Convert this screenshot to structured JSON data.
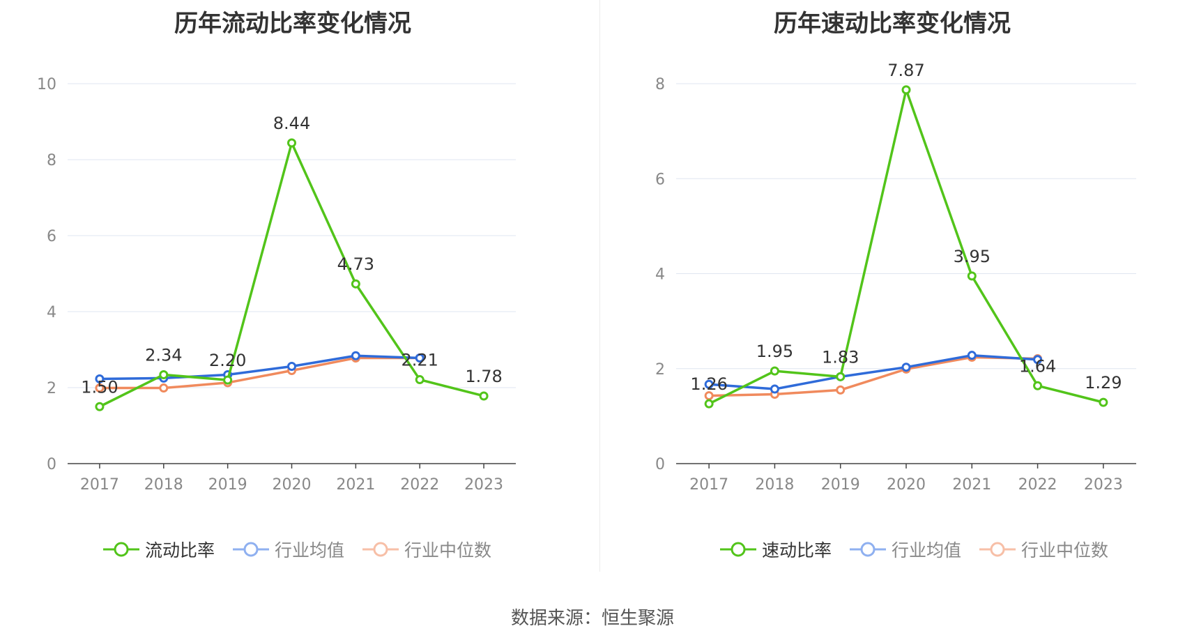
{
  "chart_data": [
    {
      "type": "line",
      "title": "历年流动比率变化情况",
      "categories": [
        "2017",
        "2018",
        "2019",
        "2020",
        "2021",
        "2022",
        "2023"
      ],
      "ylim": [
        0,
        10
      ],
      "yticks": [
        0,
        2,
        4,
        6,
        8,
        10
      ],
      "grid": true,
      "legend_position": "bottom",
      "series": [
        {
          "name": "流动比率",
          "color": "#52c41a",
          "values": [
            1.5,
            2.34,
            2.2,
            8.44,
            4.73,
            2.21,
            1.78
          ],
          "labels": [
            "1.50",
            "2.34",
            "2.20",
            "8.44",
            "4.73",
            "2.21",
            "1.78"
          ]
        },
        {
          "name": "行业均值",
          "color": "#2f6bd9",
          "values": [
            2.23,
            2.25,
            2.34,
            2.56,
            2.84,
            2.78,
            null
          ]
        },
        {
          "name": "行业中位数",
          "color": "#f08a5d",
          "values": [
            1.99,
            1.99,
            2.13,
            2.45,
            2.78,
            2.78,
            null
          ]
        }
      ]
    },
    {
      "type": "line",
      "title": "历年速动比率变化情况",
      "categories": [
        "2017",
        "2018",
        "2019",
        "2020",
        "2021",
        "2022",
        "2023"
      ],
      "ylim": [
        0,
        8
      ],
      "yticks": [
        0,
        2,
        4,
        6,
        8
      ],
      "grid": true,
      "legend_position": "bottom",
      "series": [
        {
          "name": "速动比率",
          "color": "#52c41a",
          "values": [
            1.26,
            1.95,
            1.83,
            7.87,
            3.95,
            1.64,
            1.29
          ],
          "labels": [
            "1.26",
            "1.95",
            "1.83",
            "7.87",
            "3.95",
            "1.64",
            "1.29"
          ]
        },
        {
          "name": "行业均值",
          "color": "#2f6bd9",
          "values": [
            1.67,
            1.57,
            1.83,
            2.03,
            2.28,
            2.19,
            null
          ]
        },
        {
          "name": "行业中位数",
          "color": "#f08a5d",
          "values": [
            1.43,
            1.46,
            1.55,
            1.99,
            2.24,
            2.21,
            null
          ]
        }
      ]
    }
  ],
  "source_text": "数据来源：恒生聚源"
}
